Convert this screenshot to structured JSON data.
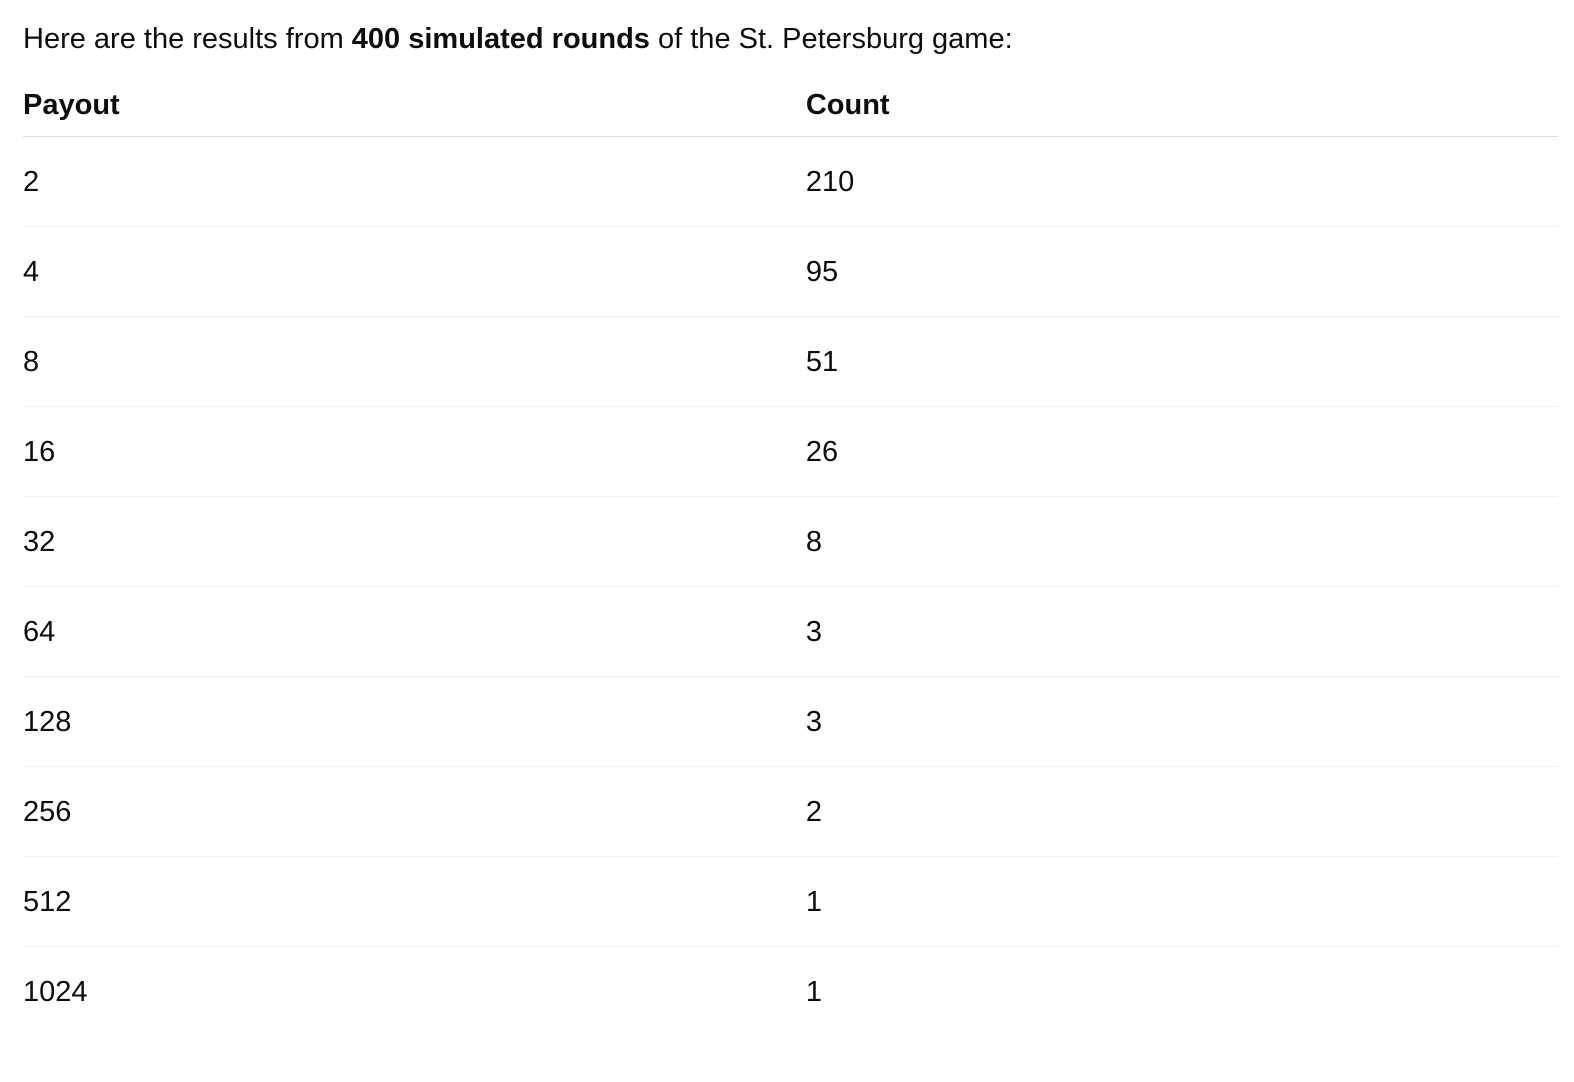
{
  "intro": {
    "prefix": "Here are the results from ",
    "bold": "400 simulated rounds",
    "suffix": " of the St. Petersburg game:"
  },
  "table": {
    "columns": [
      "Payout",
      "Count"
    ],
    "rows": [
      {
        "payout": "2",
        "count": "210"
      },
      {
        "payout": "4",
        "count": "95"
      },
      {
        "payout": "8",
        "count": "51"
      },
      {
        "payout": "16",
        "count": "26"
      },
      {
        "payout": "32",
        "count": "8"
      },
      {
        "payout": "64",
        "count": "3"
      },
      {
        "payout": "128",
        "count": "3"
      },
      {
        "payout": "256",
        "count": "2"
      },
      {
        "payout": "512",
        "count": "1"
      },
      {
        "payout": "1024",
        "count": "1"
      }
    ]
  },
  "colors": {
    "text": "#0d0d0d",
    "background": "#ffffff",
    "header_border": "#d9d9d9",
    "row_border": "#f0f0f0"
  }
}
